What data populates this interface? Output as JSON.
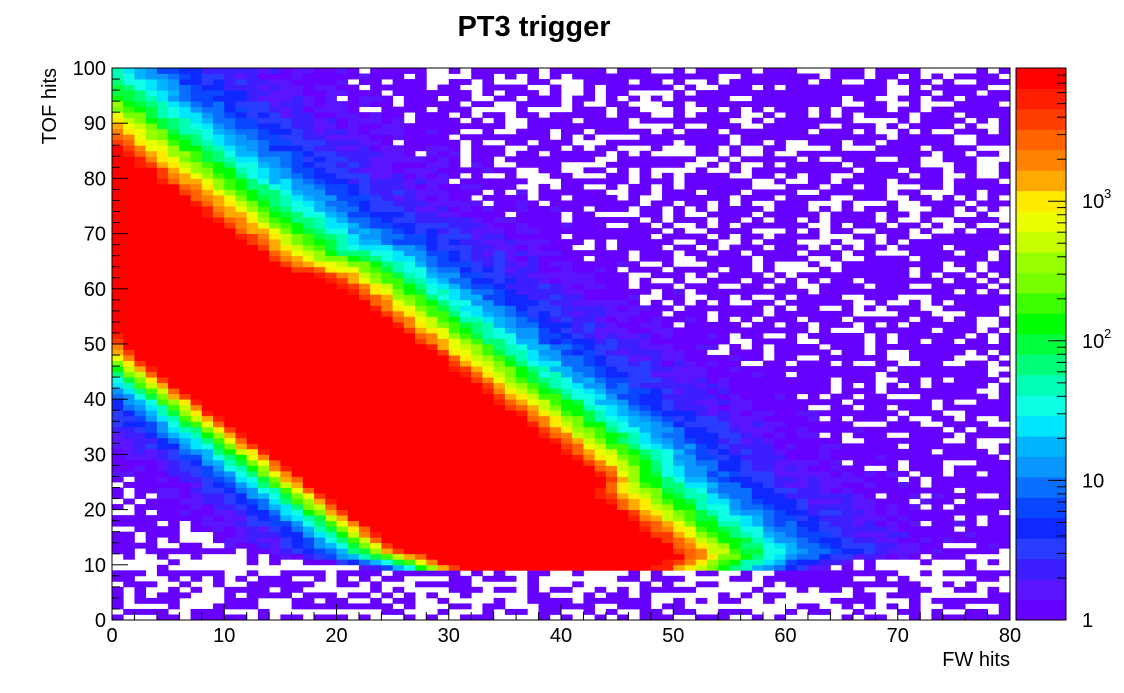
{
  "chart_data": {
    "type": "heatmap",
    "title": "PT3 trigger",
    "xlabel": "FW hits",
    "ylabel": "TOF hits",
    "xlim": [
      0,
      80
    ],
    "ylim": [
      0,
      100
    ],
    "x_ticks": [
      "0",
      "10",
      "20",
      "30",
      "40",
      "50",
      "60",
      "70",
      "80"
    ],
    "y_ticks": [
      "0",
      "10",
      "20",
      "30",
      "40",
      "50",
      "60",
      "70",
      "80",
      "90",
      "100"
    ],
    "z_scale": "log",
    "zlim": [
      1,
      9000
    ],
    "colorbar_ticks": [
      {
        "value": 1,
        "label": "1"
      },
      {
        "value": 10,
        "label": "10"
      },
      {
        "value": 100,
        "label": "10",
        "exponent": "2"
      },
      {
        "value": 1000,
        "label": "10",
        "exponent": "3"
      }
    ],
    "bin_width": [
      1,
      1
    ],
    "distribution_model": {
      "description": "smooth approximation of the 2D hit-count density",
      "peak_counts": 8000,
      "ridge": "counts peak along a band from (FW 9, TOF 52) to (FW 31, TOF 19)",
      "lower_edge": "sharp cutoff near TOF 9-11; left edge near FW 0-2"
    },
    "colors": [
      "#6600ff",
      "#5a14ff",
      "#3c1eff",
      "#2a3cff",
      "#0f28ff",
      "#0a46ff",
      "#0a6eff",
      "#0a96ff",
      "#00b4ff",
      "#00e6ff",
      "#0fffe6",
      "#00ffb4",
      "#00ff78",
      "#00ff3c",
      "#00ff00",
      "#3cff00",
      "#78ff00",
      "#96ff00",
      "#c8ff00",
      "#ebff00",
      "#ffeb00",
      "#ffaa00",
      "#ff8200",
      "#ff6400",
      "#ff3c00",
      "#ff1e00",
      "#ff0000"
    ]
  }
}
